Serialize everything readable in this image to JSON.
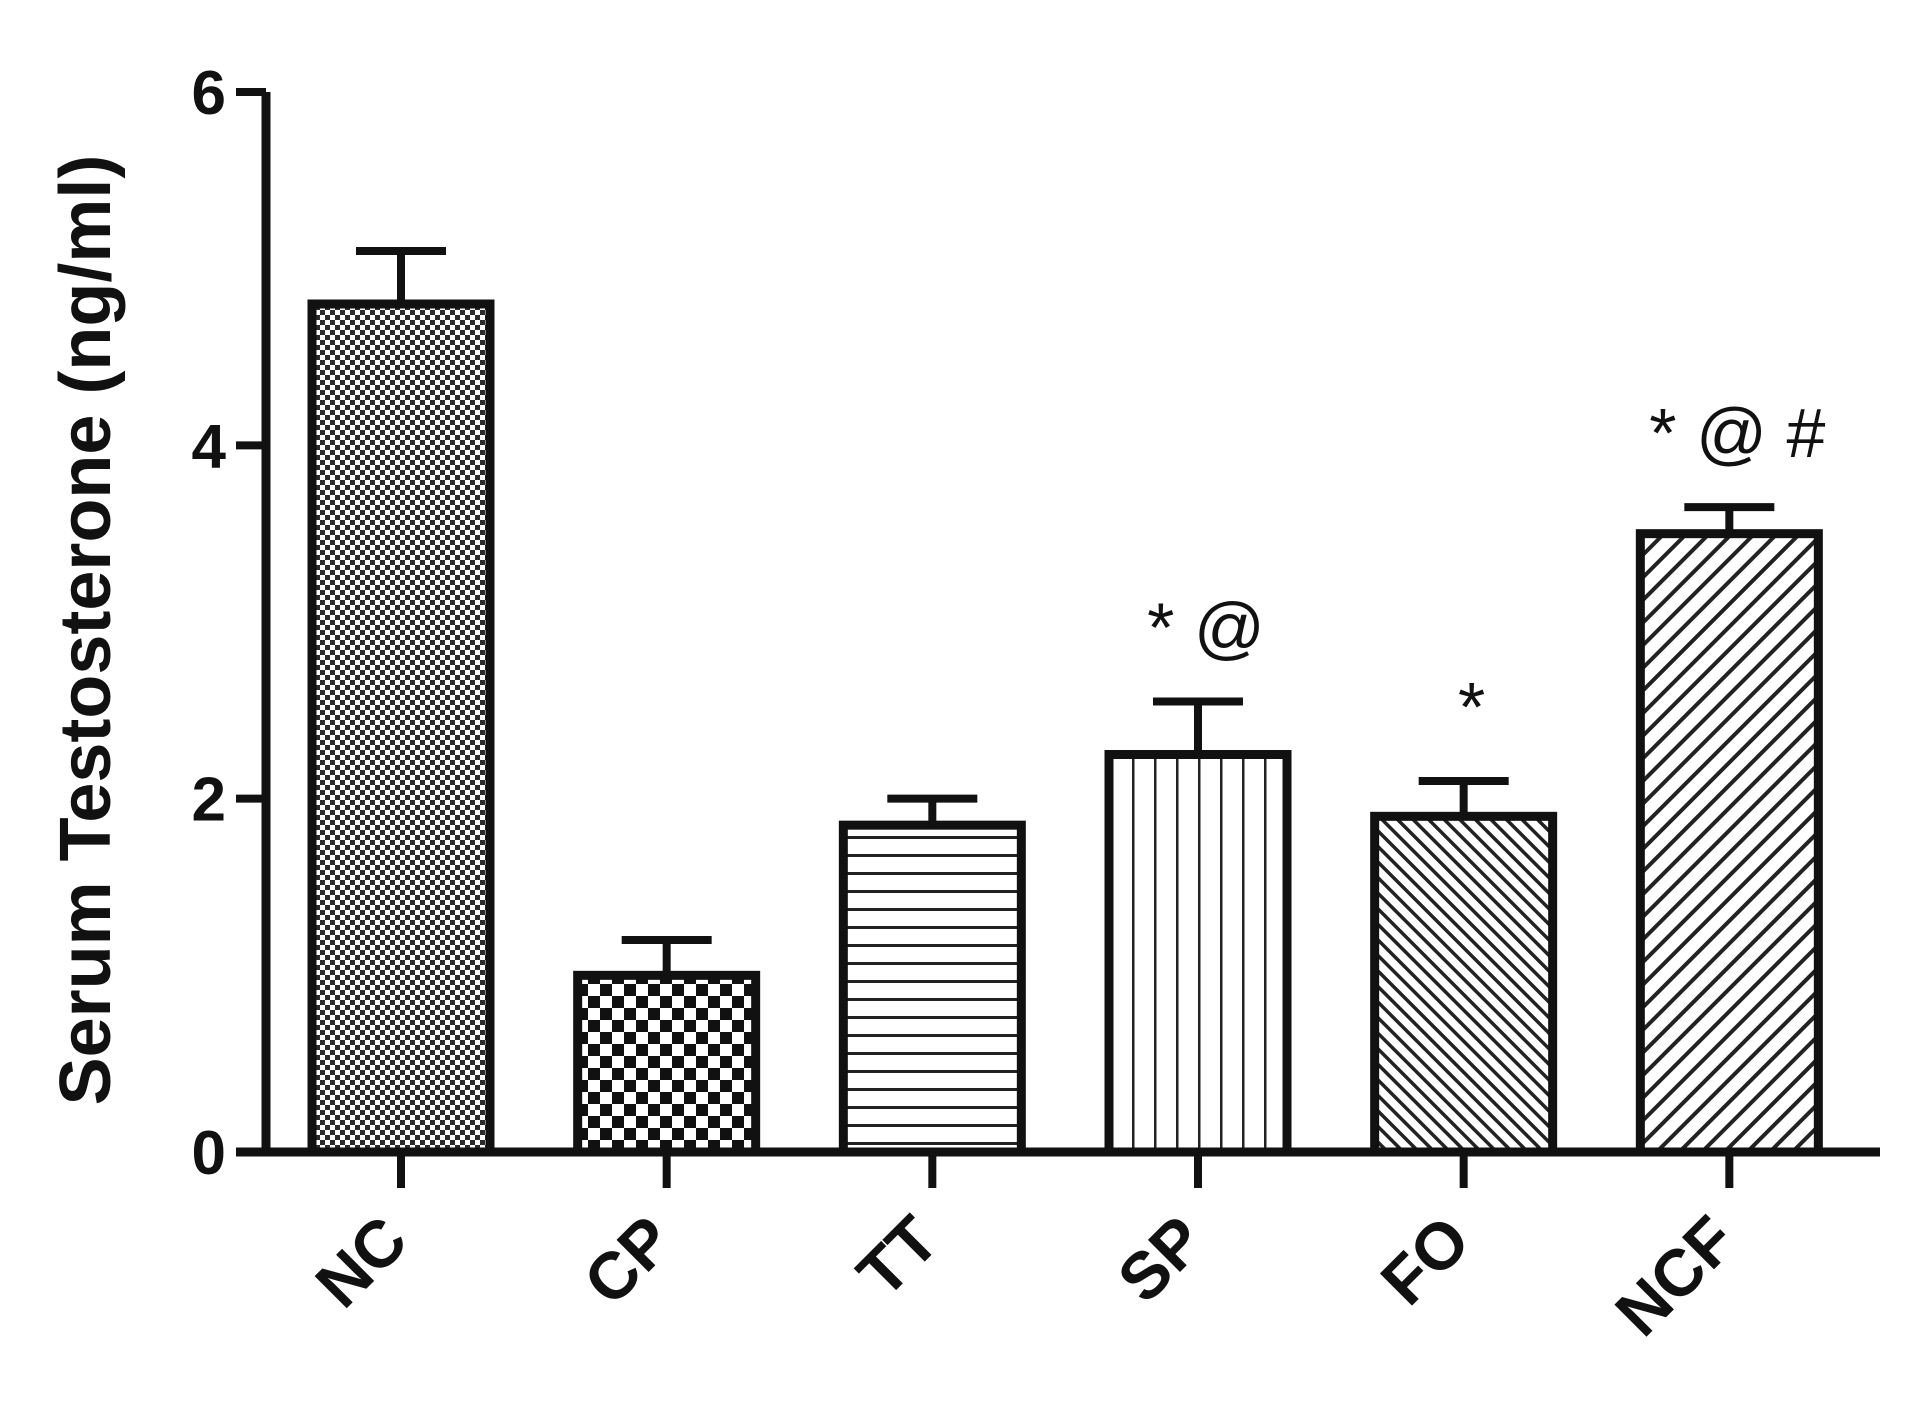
{
  "chart_data": {
    "type": "bar",
    "title": "",
    "ylabel": "Serum Testosterone (ng/ml)",
    "xlabel": "",
    "ylim": [
      0,
      6
    ],
    "yticks": [
      "0",
      "2",
      "4",
      "6"
    ],
    "categories": [
      "NC",
      "CP",
      "TT",
      "SP",
      "FO",
      "NCF"
    ],
    "values": [
      4.8,
      1.0,
      1.85,
      2.25,
      1.9,
      3.5
    ],
    "errors": [
      0.3,
      0.2,
      0.15,
      0.3,
      0.2,
      0.15
    ],
    "annotations": [
      "",
      "",
      "",
      "* @",
      "*",
      "* @ #"
    ],
    "patterns": [
      "fine-checker",
      "checker",
      "horizontal-lines",
      "vertical-lines",
      "diagonal-dense",
      "diagonal-wide"
    ],
    "grid": false,
    "legend": "none"
  }
}
